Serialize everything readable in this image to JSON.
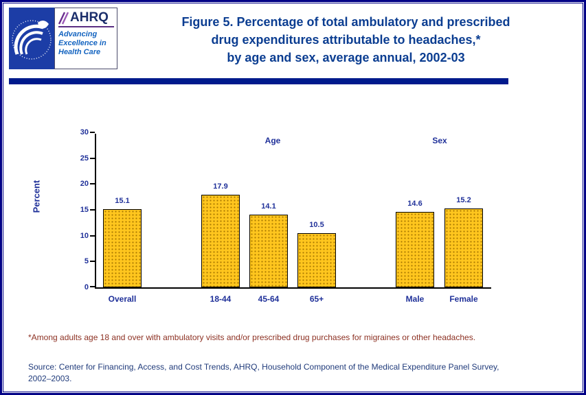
{
  "colors": {
    "title_color": "#0b3d91",
    "label_color": "#1f3099",
    "bar_color": "#ffc61e",
    "footnote_color": "#8c3022",
    "source_color": "#1f3a7a",
    "divider_color": "#001a8c",
    "border_color": "#000085"
  },
  "logos": {
    "hhs_logo_name": "hhs-eagle-icon",
    "ahrq_acronym": "AHRQ",
    "ahrq_tagline_lines": [
      "Advancing",
      "Excellence in",
      "Health Care"
    ]
  },
  "page": {
    "title_lines": [
      "Figure 5. Percentage of total ambulatory and prescribed",
      "drug expenditures attributable to headaches,*",
      "by age and sex, average annual, 2002-03"
    ],
    "footnote": "*Among adults age 18 and over with ambulatory visits and/or prescribed drug purchases for migraines or other headaches.",
    "source_lines": [
      "Source: Center for Financing, Access, and Cost Trends, AHRQ, Household Component of the Medical Expenditure Panel Survey,",
      "2002–2003."
    ]
  },
  "chart_data": {
    "type": "bar",
    "title": "Percentage of total ambulatory and prescribed drug expenditures attributable to headaches, by age and sex, average annual, 2002-03",
    "xlabel": "",
    "ylabel": "Percent",
    "ylim": [
      0,
      30
    ],
    "yticks": [
      0,
      5,
      10,
      15,
      20,
      25,
      30
    ],
    "grid": false,
    "legend_position": "none",
    "categories": [
      "Overall",
      "18-44",
      "45-64",
      "65+",
      "Male",
      "Female"
    ],
    "values": [
      15.1,
      17.9,
      14.1,
      10.5,
      14.6,
      15.2
    ],
    "group_labels": [
      "Age",
      "Sex"
    ],
    "groups": {
      "Age": [
        "18-44",
        "45-64",
        "65+"
      ],
      "Sex": [
        "Male",
        "Female"
      ]
    }
  }
}
